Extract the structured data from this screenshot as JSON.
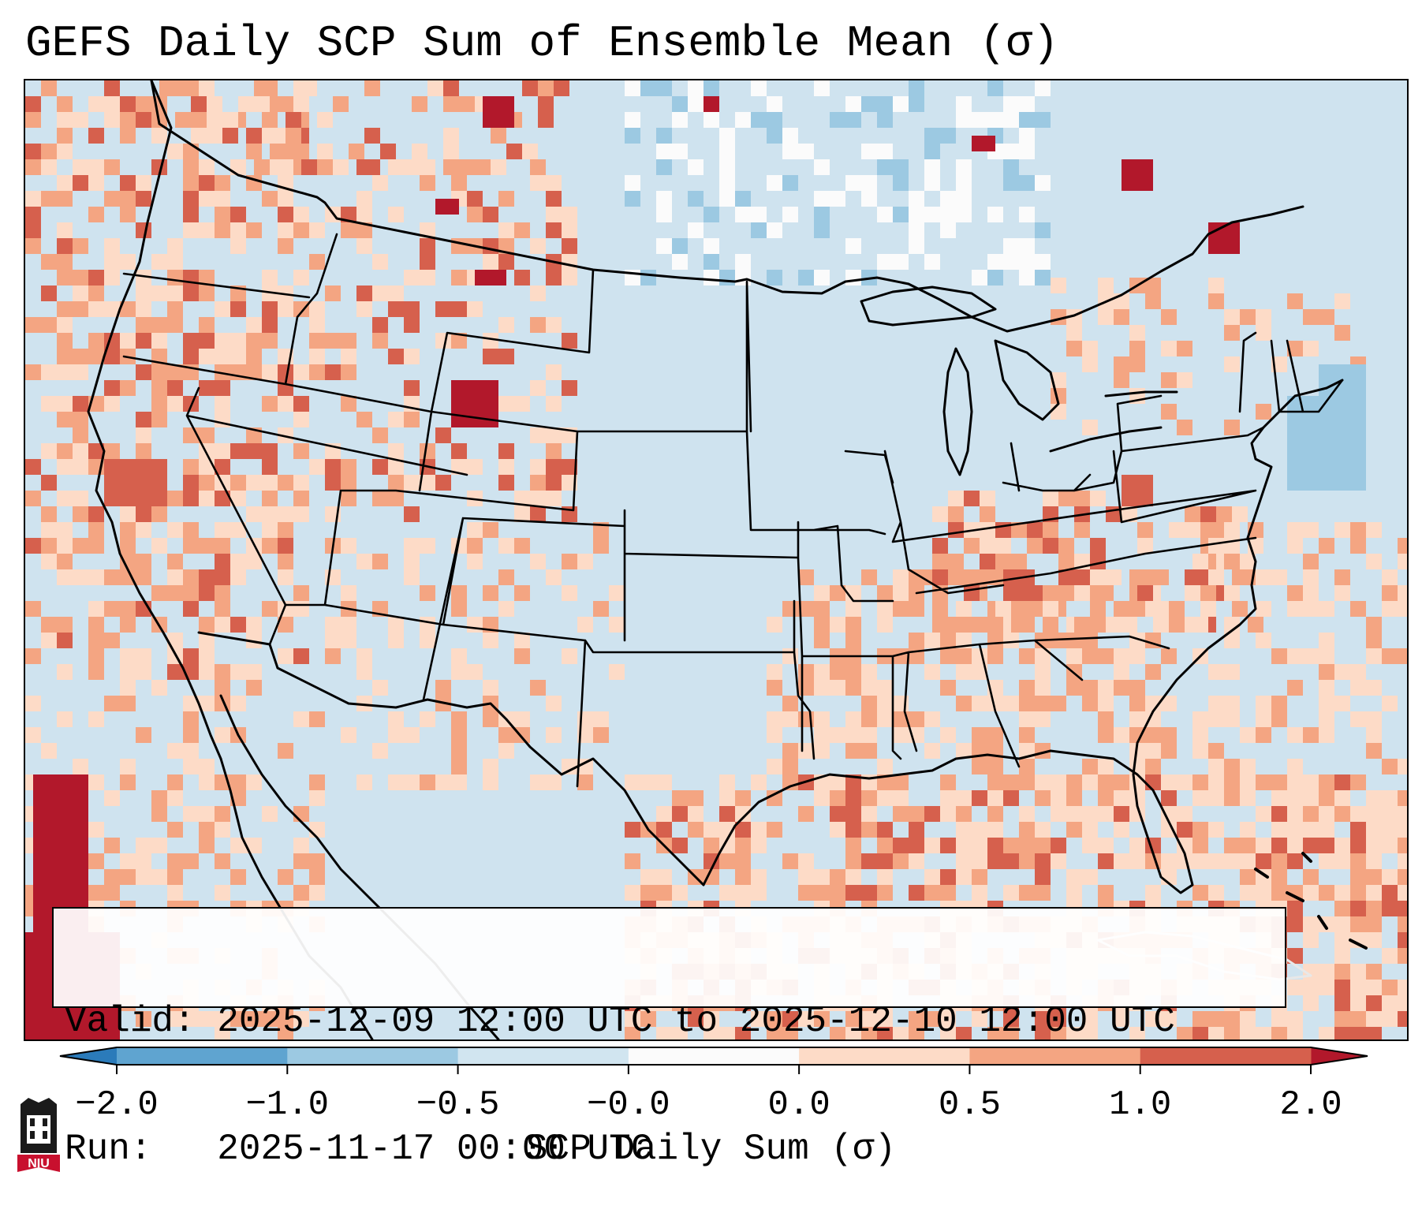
{
  "title": "GEFS Daily SCP Sum of Ensemble Mean (σ)",
  "info": {
    "valid_line": "Valid: 2025-12-09 12:00 UTC to 2025-12-10 12:00 UTC",
    "run_line": "Run:   2025-11-17 00:00 UTC"
  },
  "colorbar": {
    "label": "SCP Daily Sum (σ)",
    "tick_labels": [
      "−2.0",
      "−1.0",
      "−0.5",
      "−0.0",
      "0.0",
      "0.5",
      "1.0",
      "2.0"
    ],
    "bin_colors": [
      "#2b7bba",
      "#5fa4d0",
      "#9cc9e2",
      "#d1e5f0",
      "#fbfbfb",
      "#fddbc7",
      "#f4a582",
      "#d6604d",
      "#b2182b"
    ],
    "extend": "both"
  },
  "map": {
    "region": "Continental United States",
    "ocean_base_color": "#d1e5f0",
    "data_note": "Gridded SCP sigma anomalies; highest values along Gulf coast, Southeast, northern Rockies and Pacific coast"
  },
  "logo": {
    "text": "NIU",
    "icon": "niu-logo-icon"
  }
}
